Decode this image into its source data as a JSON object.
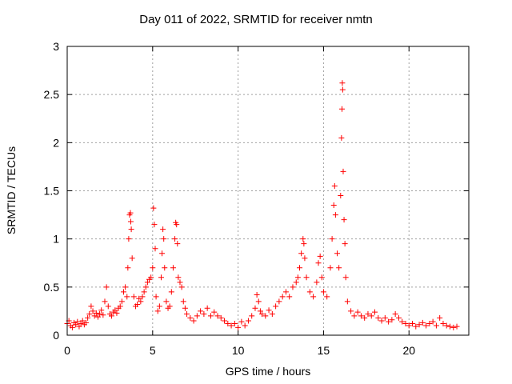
{
  "chart_data": {
    "type": "scatter",
    "title": "Day 011 of 2022, SRMTID for receiver nmtn",
    "xlabel": "GPS time / hours",
    "ylabel": "SRMTID / TECUs",
    "xlim": [
      0,
      23.5
    ],
    "ylim": [
      0,
      3
    ],
    "xticks": [
      0,
      5,
      10,
      15,
      20
    ],
    "xtick_labels": [
      "0",
      "5",
      "10",
      "15",
      "20"
    ],
    "yticks": [
      0,
      0.5,
      1,
      1.5,
      2,
      2.5,
      3
    ],
    "ytick_labels": [
      "0",
      "0.5",
      "1",
      "1.5",
      "2",
      "2.5",
      "3"
    ],
    "grid": true,
    "marker": "+",
    "color": "#ff0000",
    "series": [
      {
        "name": "SRMTID",
        "points": [
          [
            0.0,
            0.12
          ],
          [
            0.1,
            0.15
          ],
          [
            0.2,
            0.1
          ],
          [
            0.3,
            0.08
          ],
          [
            0.4,
            0.13
          ],
          [
            0.5,
            0.11
          ],
          [
            0.6,
            0.14
          ],
          [
            0.7,
            0.09
          ],
          [
            0.8,
            0.12
          ],
          [
            0.9,
            0.15
          ],
          [
            1.0,
            0.11
          ],
          [
            1.1,
            0.13
          ],
          [
            1.2,
            0.18
          ],
          [
            1.3,
            0.22
          ],
          [
            1.4,
            0.3
          ],
          [
            1.5,
            0.25
          ],
          [
            1.6,
            0.2
          ],
          [
            1.7,
            0.23
          ],
          [
            1.8,
            0.19
          ],
          [
            1.9,
            0.22
          ],
          [
            2.0,
            0.26
          ],
          [
            2.1,
            0.21
          ],
          [
            2.2,
            0.35
          ],
          [
            2.3,
            0.5
          ],
          [
            2.4,
            0.3
          ],
          [
            2.5,
            0.22
          ],
          [
            2.6,
            0.2
          ],
          [
            2.7,
            0.24
          ],
          [
            2.8,
            0.26
          ],
          [
            2.9,
            0.23
          ],
          [
            3.0,
            0.28
          ],
          [
            3.1,
            0.3
          ],
          [
            3.2,
            0.35
          ],
          [
            3.3,
            0.45
          ],
          [
            3.4,
            0.5
          ],
          [
            3.5,
            0.4
          ],
          [
            3.55,
            0.7
          ],
          [
            3.6,
            1.0
          ],
          [
            3.65,
            1.25
          ],
          [
            3.7,
            1.27
          ],
          [
            3.72,
            1.18
          ],
          [
            3.75,
            1.1
          ],
          [
            3.8,
            0.8
          ],
          [
            3.9,
            0.4
          ],
          [
            4.0,
            0.3
          ],
          [
            4.1,
            0.32
          ],
          [
            4.2,
            0.38
          ],
          [
            4.3,
            0.35
          ],
          [
            4.4,
            0.4
          ],
          [
            4.5,
            0.45
          ],
          [
            4.6,
            0.5
          ],
          [
            4.7,
            0.55
          ],
          [
            4.8,
            0.58
          ],
          [
            4.9,
            0.6
          ],
          [
            5.0,
            0.7
          ],
          [
            5.05,
            1.32
          ],
          [
            5.1,
            1.15
          ],
          [
            5.15,
            0.9
          ],
          [
            5.2,
            0.4
          ],
          [
            5.3,
            0.25
          ],
          [
            5.4,
            0.3
          ],
          [
            5.5,
            0.6
          ],
          [
            5.55,
            0.85
          ],
          [
            5.6,
            1.1
          ],
          [
            5.65,
            1.0
          ],
          [
            5.7,
            0.7
          ],
          [
            5.8,
            0.35
          ],
          [
            5.9,
            0.28
          ],
          [
            6.0,
            0.3
          ],
          [
            6.1,
            0.45
          ],
          [
            6.2,
            0.7
          ],
          [
            6.3,
            1.0
          ],
          [
            6.35,
            1.17
          ],
          [
            6.4,
            1.15
          ],
          [
            6.45,
            0.95
          ],
          [
            6.5,
            0.6
          ],
          [
            6.6,
            0.55
          ],
          [
            6.7,
            0.5
          ],
          [
            6.8,
            0.35
          ],
          [
            6.9,
            0.28
          ],
          [
            7.0,
            0.22
          ],
          [
            7.2,
            0.18
          ],
          [
            7.4,
            0.15
          ],
          [
            7.6,
            0.2
          ],
          [
            7.8,
            0.25
          ],
          [
            8.0,
            0.22
          ],
          [
            8.2,
            0.28
          ],
          [
            8.4,
            0.2
          ],
          [
            8.6,
            0.24
          ],
          [
            8.8,
            0.2
          ],
          [
            9.0,
            0.18
          ],
          [
            9.2,
            0.15
          ],
          [
            9.4,
            0.12
          ],
          [
            9.6,
            0.1
          ],
          [
            9.8,
            0.12
          ],
          [
            10.0,
            0.08
          ],
          [
            10.2,
            0.14
          ],
          [
            10.4,
            0.1
          ],
          [
            10.6,
            0.15
          ],
          [
            10.8,
            0.2
          ],
          [
            11.0,
            0.28
          ],
          [
            11.1,
            0.42
          ],
          [
            11.2,
            0.35
          ],
          [
            11.3,
            0.25
          ],
          [
            11.4,
            0.22
          ],
          [
            11.6,
            0.2
          ],
          [
            11.8,
            0.26
          ],
          [
            12.0,
            0.22
          ],
          [
            12.2,
            0.3
          ],
          [
            12.4,
            0.35
          ],
          [
            12.6,
            0.4
          ],
          [
            12.8,
            0.45
          ],
          [
            13.0,
            0.4
          ],
          [
            13.2,
            0.5
          ],
          [
            13.4,
            0.55
          ],
          [
            13.5,
            0.6
          ],
          [
            13.6,
            0.7
          ],
          [
            13.7,
            0.85
          ],
          [
            13.8,
            1.0
          ],
          [
            13.85,
            0.95
          ],
          [
            13.9,
            0.8
          ],
          [
            14.0,
            0.6
          ],
          [
            14.2,
            0.45
          ],
          [
            14.4,
            0.4
          ],
          [
            14.6,
            0.55
          ],
          [
            14.7,
            0.75
          ],
          [
            14.8,
            0.82
          ],
          [
            14.9,
            0.6
          ],
          [
            15.0,
            0.45
          ],
          [
            15.2,
            0.4
          ],
          [
            15.4,
            0.7
          ],
          [
            15.5,
            1.0
          ],
          [
            15.6,
            1.35
          ],
          [
            15.65,
            1.55
          ],
          [
            15.7,
            1.25
          ],
          [
            15.8,
            0.85
          ],
          [
            15.9,
            0.7
          ],
          [
            16.0,
            1.45
          ],
          [
            16.05,
            2.05
          ],
          [
            16.08,
            2.35
          ],
          [
            16.1,
            2.62
          ],
          [
            16.12,
            2.55
          ],
          [
            16.15,
            1.7
          ],
          [
            16.2,
            1.2
          ],
          [
            16.25,
            0.95
          ],
          [
            16.3,
            0.6
          ],
          [
            16.4,
            0.35
          ],
          [
            16.6,
            0.25
          ],
          [
            16.8,
            0.2
          ],
          [
            17.0,
            0.24
          ],
          [
            17.2,
            0.2
          ],
          [
            17.4,
            0.18
          ],
          [
            17.6,
            0.22
          ],
          [
            17.8,
            0.2
          ],
          [
            18.0,
            0.24
          ],
          [
            18.2,
            0.18
          ],
          [
            18.4,
            0.15
          ],
          [
            18.6,
            0.18
          ],
          [
            18.8,
            0.14
          ],
          [
            19.0,
            0.16
          ],
          [
            19.2,
            0.22
          ],
          [
            19.4,
            0.18
          ],
          [
            19.6,
            0.14
          ],
          [
            19.8,
            0.12
          ],
          [
            20.0,
            0.1
          ],
          [
            20.2,
            0.12
          ],
          [
            20.4,
            0.09
          ],
          [
            20.6,
            0.11
          ],
          [
            20.8,
            0.13
          ],
          [
            21.0,
            0.1
          ],
          [
            21.2,
            0.12
          ],
          [
            21.4,
            0.14
          ],
          [
            21.6,
            0.1
          ],
          [
            21.8,
            0.18
          ],
          [
            22.0,
            0.12
          ],
          [
            22.2,
            0.1
          ],
          [
            22.4,
            0.09
          ],
          [
            22.6,
            0.08
          ],
          [
            22.8,
            0.09
          ]
        ]
      }
    ]
  }
}
